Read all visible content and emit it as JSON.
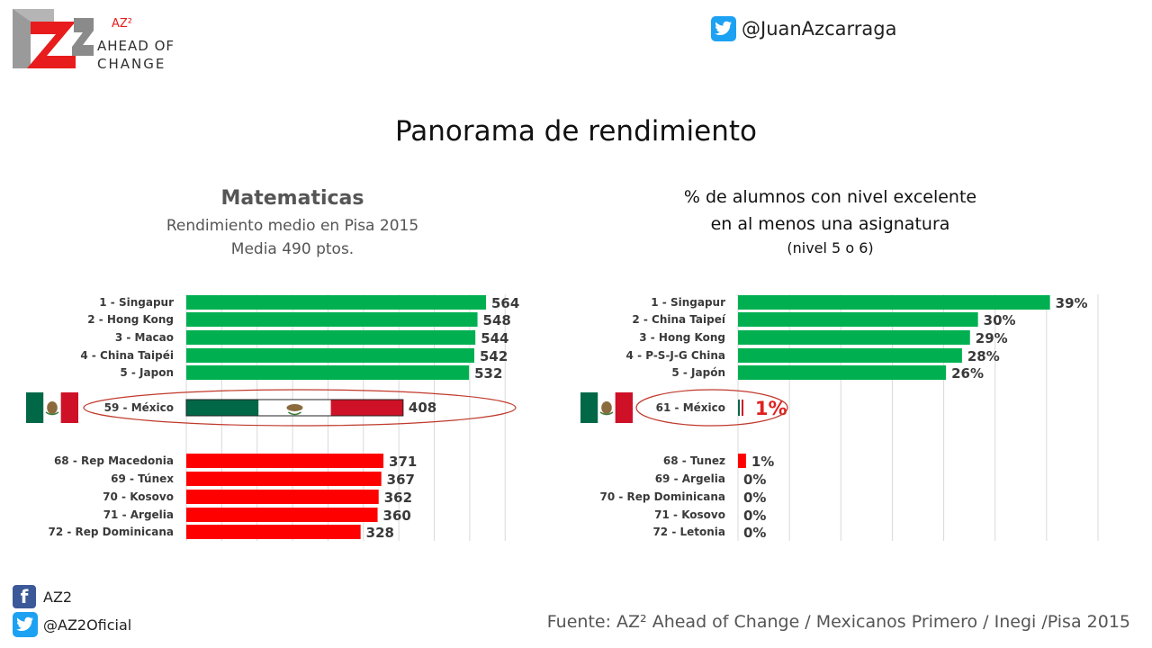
{
  "header": {
    "logo_mark": "AZ2",
    "logo_small": "AZ²",
    "logo_line1": "AHEAD OF",
    "logo_line2": "CHANGE",
    "twitter_handle": "@JuanAzcarraga"
  },
  "title": "Panorama de rendimiento",
  "left_panel": {
    "title": "Matematicas",
    "subtitle1": "Rendimiento medio en Pisa 2015",
    "subtitle2": "Media 490 ptos."
  },
  "right_panel": {
    "title_line1": "% de alumnos con nivel excelente",
    "title_line2": "en al menos una asignatura",
    "title_line3": "(nivel 5 o 6)"
  },
  "footer": {
    "facebook": "AZ2",
    "twitter": "@AZ2Oficial",
    "source": "Fuente: AZ² Ahead of Change / Mexicanos Primero / Inegi /Pisa 2015"
  },
  "colors": {
    "green": "#00b050",
    "red": "#ff0000",
    "flag_green": "#006847",
    "flag_red": "#ce1126",
    "highlight_red": "#e02020",
    "grid": "#d9d9d9"
  },
  "chart_data": [
    {
      "type": "bar",
      "orientation": "horizontal",
      "categories": [
        "1 - Singapur",
        "2 - Hong Kong",
        "3 - Macao",
        "4 - China Taipéi",
        "5 - Japon",
        "59  - México",
        "68 - Rep Macedonia",
        "69 - Túnex",
        "70 - Kosovo",
        "71 - Argelia",
        "72 - Rep Dominicana"
      ],
      "values": [
        564,
        548,
        544,
        542,
        532,
        408,
        371,
        367,
        362,
        360,
        328
      ],
      "value_labels": [
        "564",
        "548",
        "544",
        "542",
        "532",
        "408",
        "371",
        "367",
        "362",
        "360",
        "328"
      ],
      "groups": [
        "top",
        "top",
        "top",
        "top",
        "top",
        "mexico",
        "bottom",
        "bottom",
        "bottom",
        "bottom",
        "bottom"
      ],
      "xlim": [
        0,
        600
      ],
      "grid": true,
      "title": "Matematicas"
    },
    {
      "type": "bar",
      "orientation": "horizontal",
      "categories": [
        "1 - Singapur",
        "2 - China Taipeí",
        "3 - Hong Kong",
        "4 - P-S-J-G China",
        "5 - Japón",
        "61  - México",
        "68 - Tunez",
        "69 - Argelia",
        "70 - Rep Dominicana",
        "71 - Kosovo",
        "72 - Letonia"
      ],
      "values": [
        39,
        30,
        29,
        28,
        26,
        1,
        1,
        0,
        0,
        0,
        0
      ],
      "value_labels": [
        "39%",
        "30%",
        "29%",
        "28%",
        "26%",
        "1%",
        "1%",
        "0%",
        "0%",
        "0%",
        "0%"
      ],
      "groups": [
        "top",
        "top",
        "top",
        "top",
        "top",
        "mexico",
        "bottom",
        "bottom",
        "bottom",
        "bottom",
        "bottom"
      ],
      "xlim": [
        0,
        45
      ],
      "grid": true,
      "title": "% de alumnos con nivel excelente en al menos una asignatura"
    }
  ]
}
